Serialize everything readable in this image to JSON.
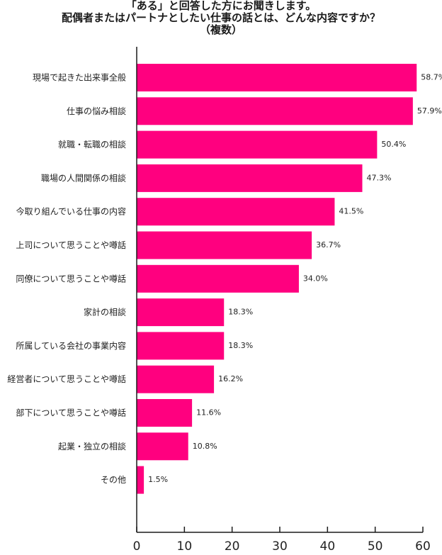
{
  "chart_data": {
    "type": "bar",
    "orientation": "horizontal",
    "title_lines": [
      "「ある」と回答した方にお聞きします。",
      "配偶者またはパートナとしたい仕事の話とは、どんな内容ですか？",
      "（複数）"
    ],
    "categories": [
      "現場で起きた出来事全般",
      "仕事の悩み相談",
      "就職・転職の相談",
      "職場の人間関係の相談",
      "今取り組んでいる仕事の内容",
      "上司について思うことや噂話",
      "同僚について思うことや噂話",
      "家計の相談",
      "所属している会社の事業内容",
      "経営者について思うことや噂話",
      "部下について思うことや噂話",
      "起業・独立の相談",
      "その他"
    ],
    "values": [
      58.7,
      57.9,
      50.4,
      47.3,
      41.5,
      36.7,
      34.0,
      18.3,
      18.3,
      16.2,
      11.6,
      10.8,
      1.5
    ],
    "value_labels": [
      "58.7%",
      "57.9%",
      "50.4%",
      "47.3%",
      "41.5%",
      "36.7%",
      "34.0%",
      "18.3%",
      "18.3%",
      "16.2%",
      "11.6%",
      "10.8%",
      "1.5%"
    ],
    "xlim": [
      0,
      60
    ],
    "xticks": [
      0,
      10,
      20,
      30,
      40,
      50,
      60
    ],
    "xtick_labels": [
      "0",
      "10",
      "20",
      "30",
      "40",
      "50",
      "60"
    ],
    "bar_color": "#ff007f",
    "axis_color": "#1a1a1a",
    "grid": false,
    "legend": "none"
  }
}
